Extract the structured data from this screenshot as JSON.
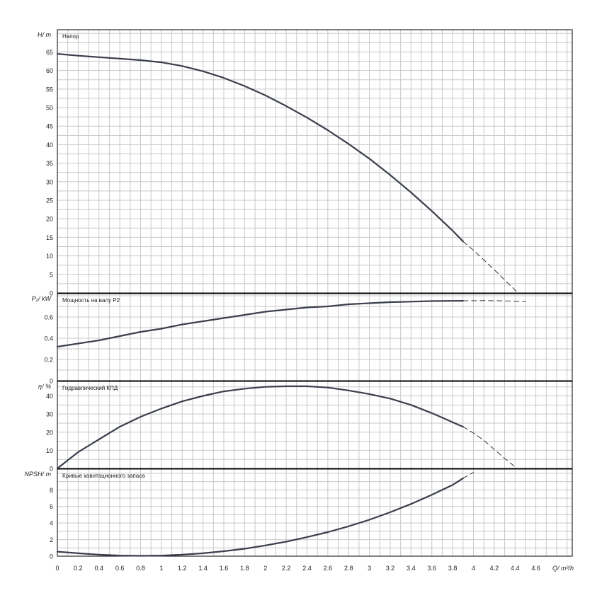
{
  "chart_data": [
    {
      "type": "line",
      "ylabel": "H/ m",
      "title": "Напор",
      "yticks": [
        0,
        5,
        10,
        15,
        20,
        25,
        30,
        35,
        40,
        45,
        50,
        55,
        60,
        65
      ],
      "ylim": [
        0,
        71
      ],
      "series": [
        {
          "x": [
            0,
            0.2,
            0.4,
            0.6,
            0.8,
            1.0,
            1.2,
            1.4,
            1.6,
            1.8,
            2.0,
            2.2,
            2.4,
            2.6,
            2.8,
            3.0,
            3.2,
            3.4,
            3.6,
            3.8,
            3.9
          ],
          "y": [
            64.5,
            64.0,
            63.6,
            63.2,
            62.8,
            62.2,
            61.2,
            59.8,
            58.0,
            55.8,
            53.3,
            50.4,
            47.3,
            43.9,
            40.2,
            36.2,
            31.8,
            27.1,
            22.1,
            16.8,
            13.9
          ]
        },
        {
          "style": "dashed",
          "x": [
            3.9,
            4.0,
            4.1,
            4.2,
            4.3,
            4.43
          ],
          "y": [
            13.9,
            11.5,
            8.9,
            6.3,
            3.5,
            0
          ]
        }
      ]
    },
    {
      "type": "line",
      "ylabel": "P₂/ kW",
      "title": "Мощность на валу P2",
      "yticks": [
        0,
        0.2,
        0.4,
        0.6
      ],
      "yticklabels": [
        "0",
        "0.2",
        "0.4",
        "0.6"
      ],
      "ylim": [
        0,
        0.82
      ],
      "series": [
        {
          "x": [
            0,
            0.2,
            0.4,
            0.6,
            0.8,
            1.0,
            1.2,
            1.4,
            1.6,
            1.8,
            2.0,
            2.2,
            2.4,
            2.6,
            2.8,
            3.0,
            3.2,
            3.4,
            3.6,
            3.8,
            3.9
          ],
          "y": [
            0.32,
            0.35,
            0.38,
            0.42,
            0.46,
            0.49,
            0.53,
            0.56,
            0.59,
            0.62,
            0.65,
            0.67,
            0.69,
            0.7,
            0.72,
            0.73,
            0.74,
            0.745,
            0.75,
            0.752,
            0.753
          ]
        },
        {
          "style": "dashed",
          "x": [
            3.9,
            4.1,
            4.3,
            4.5
          ],
          "y": [
            0.753,
            0.755,
            0.752,
            0.745
          ]
        }
      ]
    },
    {
      "type": "line",
      "ylabel": "η/ %",
      "title": "Гидравлический КПД",
      "yticks": [
        0,
        10,
        20,
        30,
        40
      ],
      "ylim": [
        0,
        48
      ],
      "series": [
        {
          "x": [
            0,
            0.2,
            0.4,
            0.6,
            0.8,
            1.0,
            1.2,
            1.4,
            1.6,
            1.8,
            2.0,
            2.2,
            2.4,
            2.6,
            2.8,
            3.0,
            3.2,
            3.4,
            3.6,
            3.8,
            3.9
          ],
          "y": [
            0,
            9,
            16,
            23,
            28.5,
            33,
            37,
            40,
            42.5,
            44,
            45,
            45.3,
            45.3,
            44.6,
            43,
            41,
            38.5,
            35,
            30.5,
            25.5,
            23
          ]
        },
        {
          "style": "dashed",
          "x": [
            3.9,
            4.0,
            4.1,
            4.2,
            4.3,
            4.42
          ],
          "y": [
            23,
            19.5,
            15.5,
            10.5,
            5.5,
            0
          ]
        }
      ]
    },
    {
      "type": "line",
      "ylabel": "NPSH/ m",
      "title": "Кривые кавитационного запаса",
      "xlabel": "Q/ m³/h",
      "yticks": [
        0,
        2,
        4,
        6,
        8
      ],
      "ylim": [
        0,
        10.5
      ],
      "xticks": [
        0,
        0.2,
        0.4,
        0.6,
        0.8,
        1,
        1.2,
        1.4,
        1.6,
        1.8,
        2,
        2.2,
        2.4,
        2.6,
        2.8,
        3,
        3.2,
        3.4,
        3.6,
        3.8,
        4,
        4.2,
        4.4,
        4.6
      ],
      "xlim": [
        0,
        4.95
      ],
      "series": [
        {
          "x": [
            0,
            0.2,
            0.4,
            0.6,
            0.8,
            1.0,
            1.2,
            1.4,
            1.6,
            1.8,
            2.0,
            2.2,
            2.4,
            2.6,
            2.8,
            3.0,
            3.2,
            3.4,
            3.6,
            3.8,
            3.9
          ],
          "y": [
            0.55,
            0.35,
            0.18,
            0.08,
            0.04,
            0.08,
            0.18,
            0.35,
            0.6,
            0.9,
            1.3,
            1.75,
            2.3,
            2.9,
            3.6,
            4.4,
            5.3,
            6.3,
            7.4,
            8.6,
            9.4
          ]
        },
        {
          "style": "dashed",
          "x": [
            3.9,
            4.0
          ],
          "y": [
            9.4,
            10.1
          ]
        }
      ]
    }
  ]
}
